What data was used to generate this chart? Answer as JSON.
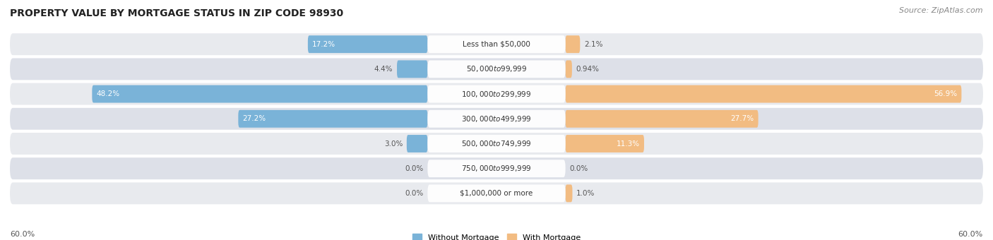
{
  "title": "PROPERTY VALUE BY MORTGAGE STATUS IN ZIP CODE 98930",
  "source": "Source: ZipAtlas.com",
  "categories": [
    "Less than $50,000",
    "$50,000 to $99,999",
    "$100,000 to $299,999",
    "$300,000 to $499,999",
    "$500,000 to $749,999",
    "$750,000 to $999,999",
    "$1,000,000 or more"
  ],
  "without_mortgage": [
    17.2,
    4.4,
    48.2,
    27.2,
    3.0,
    0.0,
    0.0
  ],
  "with_mortgage": [
    2.1,
    0.94,
    56.9,
    27.7,
    11.3,
    0.0,
    1.0
  ],
  "without_labels": [
    "17.2%",
    "4.4%",
    "48.2%",
    "27.2%",
    "3.0%",
    "0.0%",
    "0.0%"
  ],
  "with_labels": [
    "2.1%",
    "0.94%",
    "56.9%",
    "27.7%",
    "11.3%",
    "0.0%",
    "1.0%"
  ],
  "without_mortgage_label": "Without Mortgage",
  "with_mortgage_label": "With Mortgage",
  "color_without": "#7ab3d8",
  "color_with": "#f2bc82",
  "bar_row_bg_odd": "#e8eaee",
  "bar_row_bg_even": "#dde0e8",
  "max_val": 60.0,
  "title_fontsize": 10,
  "source_fontsize": 8,
  "label_fontsize": 7.5,
  "value_fontsize": 7.5,
  "cat_label_fontsize": 7.5,
  "axis_label": "60.0%"
}
